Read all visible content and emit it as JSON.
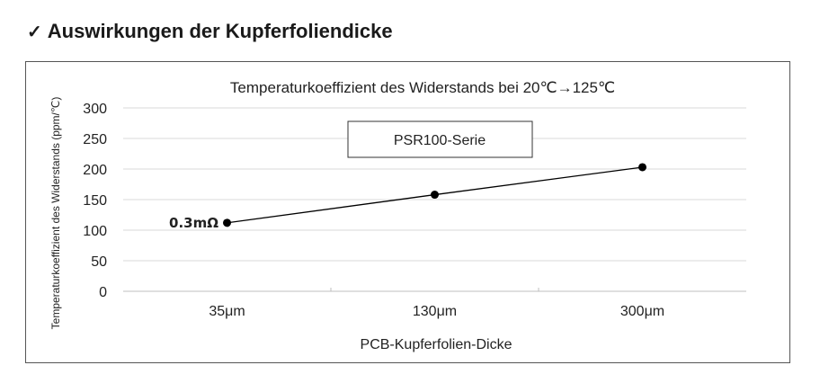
{
  "heading": {
    "check_glyph": "✓",
    "text": "Auswirkungen der Kupferfoliendicke"
  },
  "chart_data": {
    "type": "line",
    "title": "Temperaturkoeffizient des Widerstands bei 20℃→125℃",
    "xlabel": "PCB-Kupferfolien-Dicke",
    "ylabel": "Temperaturkoeffizient des Widerstands (ppm/℃)",
    "categories": [
      "35μm",
      "130μm",
      "300μm"
    ],
    "series": [
      {
        "name": "PSR100-Serie",
        "values": [
          112,
          158,
          203
        ],
        "color": "#000000"
      }
    ],
    "ylim": [
      0,
      300
    ],
    "yticks": [
      "0",
      "50",
      "100",
      "150",
      "200",
      "250",
      "300"
    ],
    "grid": true,
    "legend": "PSR100-Serie",
    "annotation": "0.3mΩ"
  },
  "colors": {
    "grid": "#d9d9d9",
    "axis": "#bfbfbf",
    "frame": "#555555"
  }
}
